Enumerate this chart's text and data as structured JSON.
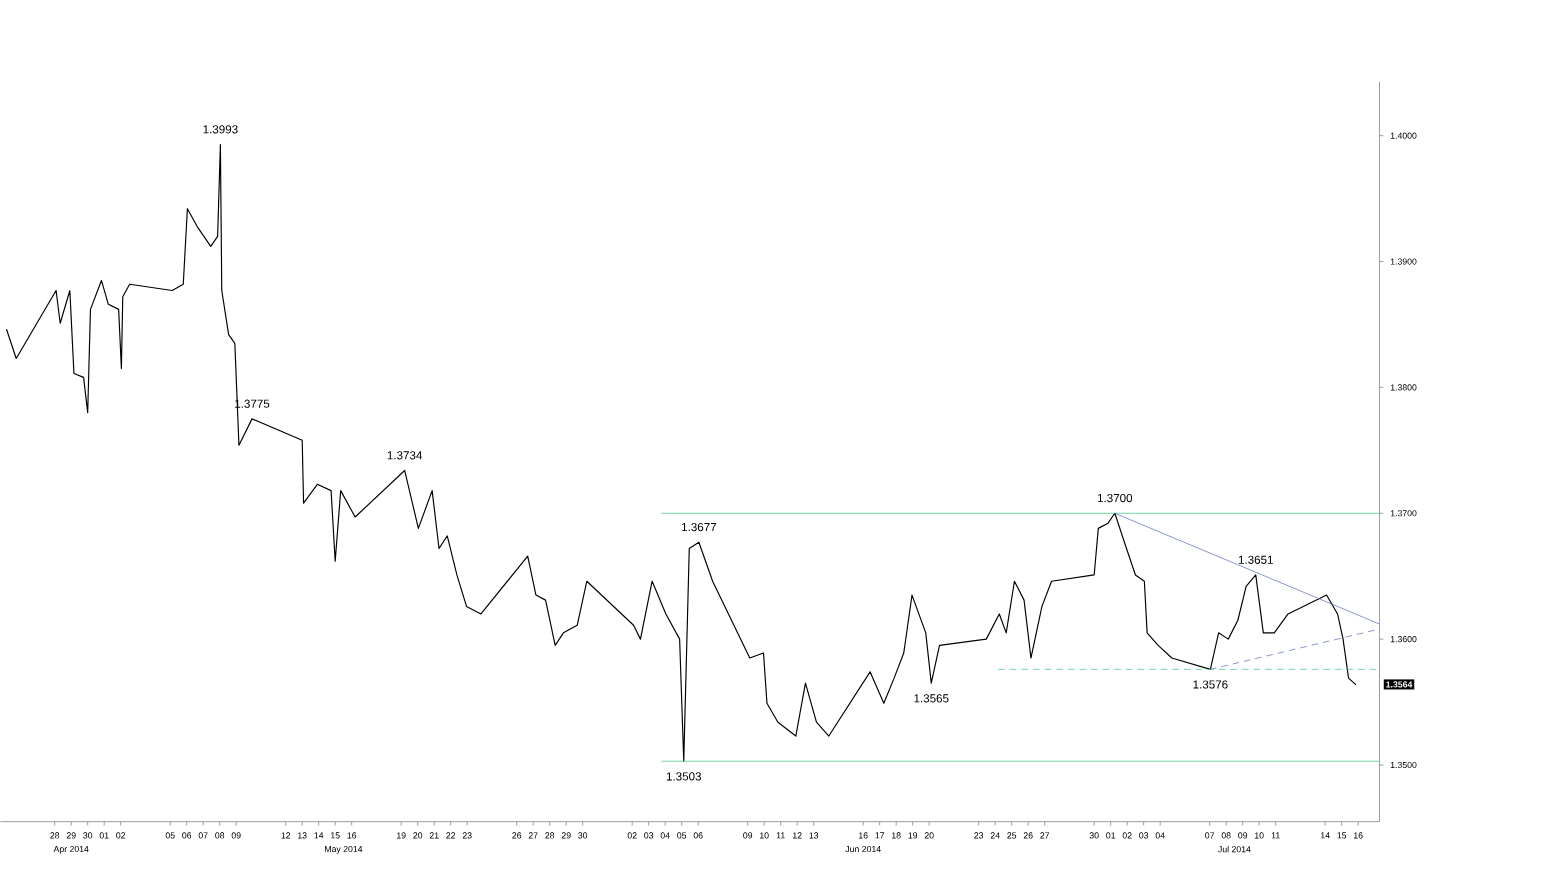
{
  "chart_data": {
    "type": "line",
    "xlim": [
      "2014-04-24T17:00",
      "2014-07-17T07:00"
    ],
    "ylim": [
      1.3455,
      1.4043
    ],
    "xticks": [
      {
        "value": "2014-04-28",
        "label": "28"
      },
      {
        "value": "2014-04-29",
        "label": "29"
      },
      {
        "value": "2014-04-30",
        "label": "30"
      },
      {
        "value": "2014-05-01",
        "label": "01"
      },
      {
        "value": "2014-05-02",
        "label": "02"
      },
      {
        "value": "2014-05-05",
        "label": "05"
      },
      {
        "value": "2014-05-06",
        "label": "06"
      },
      {
        "value": "2014-05-07",
        "label": "07"
      },
      {
        "value": "2014-05-08",
        "label": "08"
      },
      {
        "value": "2014-05-09",
        "label": "09"
      },
      {
        "value": "2014-05-12",
        "label": "12"
      },
      {
        "value": "2014-05-13",
        "label": "13"
      },
      {
        "value": "2014-05-14",
        "label": "14"
      },
      {
        "value": "2014-05-15",
        "label": "15"
      },
      {
        "value": "2014-05-16",
        "label": "16"
      },
      {
        "value": "2014-05-19",
        "label": "19"
      },
      {
        "value": "2014-05-20",
        "label": "20"
      },
      {
        "value": "2014-05-21",
        "label": "21"
      },
      {
        "value": "2014-05-22",
        "label": "22"
      },
      {
        "value": "2014-05-23",
        "label": "23"
      },
      {
        "value": "2014-05-26",
        "label": "26"
      },
      {
        "value": "2014-05-27",
        "label": "27"
      },
      {
        "value": "2014-05-28",
        "label": "28"
      },
      {
        "value": "2014-05-29",
        "label": "29"
      },
      {
        "value": "2014-05-30",
        "label": "30"
      },
      {
        "value": "2014-06-02",
        "label": "02"
      },
      {
        "value": "2014-06-03",
        "label": "03"
      },
      {
        "value": "2014-06-04",
        "label": "04"
      },
      {
        "value": "2014-06-05",
        "label": "05"
      },
      {
        "value": "2014-06-06",
        "label": "06"
      },
      {
        "value": "2014-06-09",
        "label": "09"
      },
      {
        "value": "2014-06-10",
        "label": "10"
      },
      {
        "value": "2014-06-11",
        "label": "11"
      },
      {
        "value": "2014-06-12",
        "label": "12"
      },
      {
        "value": "2014-06-13",
        "label": "13"
      },
      {
        "value": "2014-06-16",
        "label": "16"
      },
      {
        "value": "2014-06-17",
        "label": "17"
      },
      {
        "value": "2014-06-18",
        "label": "18"
      },
      {
        "value": "2014-06-19",
        "label": "19"
      },
      {
        "value": "2014-06-20",
        "label": "20"
      },
      {
        "value": "2014-06-23",
        "label": "23"
      },
      {
        "value": "2014-06-24",
        "label": "24"
      },
      {
        "value": "2014-06-25",
        "label": "25"
      },
      {
        "value": "2014-06-26",
        "label": "26"
      },
      {
        "value": "2014-06-27",
        "label": "27"
      },
      {
        "value": "2014-06-30",
        "label": "30"
      },
      {
        "value": "2014-07-01",
        "label": "01"
      },
      {
        "value": "2014-07-02",
        "label": "02"
      },
      {
        "value": "2014-07-03",
        "label": "03"
      },
      {
        "value": "2014-07-04",
        "label": "04"
      },
      {
        "value": "2014-07-07",
        "label": "07"
      },
      {
        "value": "2014-07-08",
        "label": "08"
      },
      {
        "value": "2014-07-09",
        "label": "09"
      },
      {
        "value": "2014-07-10",
        "label": "10"
      },
      {
        "value": "2014-07-11",
        "label": "11"
      },
      {
        "value": "2014-07-14",
        "label": "14"
      },
      {
        "value": "2014-07-15",
        "label": "15"
      },
      {
        "value": "2014-07-16",
        "label": "16"
      }
    ],
    "yticks": [
      {
        "value": 1.35,
        "label": "1.3500"
      },
      {
        "value": 1.36,
        "label": "1.3600"
      },
      {
        "value": 1.37,
        "label": "1.3700"
      },
      {
        "value": 1.38,
        "label": "1.3800"
      },
      {
        "value": 1.39,
        "label": "1.3900"
      },
      {
        "value": 1.4,
        "label": "1.4000"
      }
    ],
    "series": [
      {
        "color": "#000000",
        "line_style": "solid",
        "x": [
          "2014-04-25T02:00",
          "2014-04-25T16:00",
          "2014-04-28T02:00",
          "2014-04-28T08:00",
          "2014-04-28T22:00",
          "2014-04-29T04:00",
          "2014-04-29T18:00",
          "2014-04-30T00:00",
          "2014-04-30T04:00",
          "2014-04-30T20:00",
          "2014-05-01T06:00",
          "2014-05-01T21:00",
          "2014-05-02T01:00",
          "2014-05-02T03:00",
          "2014-05-02T13:00",
          "2014-05-05T03:00",
          "2014-05-05T19:00",
          "2014-05-06T01:00",
          "2014-05-06T15:00",
          "2014-05-07T11:00",
          "2014-05-07T21:00",
          "2014-05-08T01:00",
          "2014-05-08T03:00",
          "2014-05-08T13:00",
          "2014-05-08T22:00",
          "2014-05-09T04:00",
          "2014-05-09T23:00",
          "2014-05-13T00:00",
          "2014-05-13T02:00",
          "2014-05-13T22:00",
          "2014-05-14T18:00",
          "2014-05-15T00:00",
          "2014-05-15T08:00",
          "2014-05-16T05:00",
          "2014-05-19T05:00",
          "2014-05-20T01:00",
          "2014-05-20T21:00",
          "2014-05-21T07:00",
          "2014-05-21T19:00",
          "2014-05-22T09:00",
          "2014-05-22T23:00",
          "2014-05-23T20:00",
          "2014-05-26T16:00",
          "2014-05-27T04:00",
          "2014-05-27T18:00",
          "2014-05-28T08:00",
          "2014-05-28T20:00",
          "2014-05-29T16:00",
          "2014-05-30T06:00",
          "2014-06-02T02:00",
          "2014-06-02T12:00",
          "2014-06-03T05:00",
          "2014-06-04T01:00",
          "2014-06-04T21:00",
          "2014-06-05T03:00",
          "2014-06-05T11:00",
          "2014-06-06T01:00",
          "2014-06-06T21:00",
          "2014-06-09T03:00",
          "2014-06-09T23:00",
          "2014-06-10T04:00",
          "2014-06-10T20:00",
          "2014-06-11T22:00",
          "2014-06-12T12:00",
          "2014-06-13T04:00",
          "2014-06-13T22:00",
          "2014-06-16T10:00",
          "2014-06-17T06:00",
          "2014-06-17T21:00",
          "2014-06-18T11:00",
          "2014-06-18T23:00",
          "2014-06-19T19:00",
          "2014-06-20T03:00",
          "2014-06-20T15:00",
          "2014-06-23T11:00",
          "2014-06-24T06:00",
          "2014-06-24T16:00",
          "2014-06-25T04:00",
          "2014-06-25T18:00",
          "2014-06-26T04:00",
          "2014-06-26T20:00",
          "2014-06-27T10:00",
          "2014-06-30T00:00",
          "2014-06-30T06:00",
          "2014-06-30T20:00",
          "2014-07-01T06:00",
          "2014-07-01T23:00",
          "2014-07-02T12:00",
          "2014-07-03T01:00",
          "2014-07-03T05:00",
          "2014-07-03T21:00",
          "2014-07-04T17:00",
          "2014-07-07T01:00",
          "2014-07-07T13:00",
          "2014-07-08T03:00",
          "2014-07-08T17:00",
          "2014-07-09T05:00",
          "2014-07-09T19:00",
          "2014-07-10T06:00",
          "2014-07-10T22:00",
          "2014-07-11T18:00",
          "2014-07-14T02:00",
          "2014-07-14T18:00",
          "2014-07-15T02:00",
          "2014-07-15T10:00",
          "2014-07-15T20:00"
        ],
        "values": [
          1.3846,
          1.3823,
          1.3877,
          1.3851,
          1.3877,
          1.3811,
          1.3808,
          1.378,
          1.3862,
          1.3885,
          1.3866,
          1.3862,
          1.3815,
          1.3872,
          1.3882,
          1.3877,
          1.3882,
          1.3942,
          1.3928,
          1.3912,
          1.392,
          1.3993,
          1.3877,
          1.3842,
          1.3835,
          1.3754,
          1.3775,
          1.3758,
          1.3708,
          1.3723,
          1.3718,
          1.3662,
          1.3718,
          1.3697,
          1.3734,
          1.3688,
          1.3718,
          1.3672,
          1.3682,
          1.3651,
          1.3626,
          1.362,
          1.3666,
          1.3635,
          1.3631,
          1.3595,
          1.3605,
          1.3611,
          1.3646,
          1.3611,
          1.36,
          1.3646,
          1.362,
          1.36,
          1.3503,
          1.3672,
          1.3677,
          1.3646,
          1.3585,
          1.3589,
          1.3549,
          1.3534,
          1.3523,
          1.3565,
          1.3534,
          1.3523,
          1.3574,
          1.3549,
          1.3569,
          1.3589,
          1.3635,
          1.3605,
          1.3565,
          1.3595,
          1.36,
          1.362,
          1.3605,
          1.3646,
          1.3631,
          1.3585,
          1.3626,
          1.3646,
          1.3651,
          1.3688,
          1.3692,
          1.37,
          1.3672,
          1.3651,
          1.3646,
          1.3605,
          1.3595,
          1.3585,
          1.3576,
          1.3605,
          1.36,
          1.3615,
          1.3642,
          1.3651,
          1.3605,
          1.3605,
          1.362,
          1.3635,
          1.362,
          1.36,
          1.3569,
          1.3564
        ]
      },
      {
        "color": "#4cc98a",
        "line_style": "solid",
        "x": [
          "2014-06-03T19:00",
          "2014-07-17T07:00"
        ],
        "values": [
          1.37,
          1.37
        ]
      },
      {
        "color": "#4cc98a",
        "line_style": "solid",
        "x": [
          "2014-06-03T19:00",
          "2014-07-17T07:00"
        ],
        "values": [
          1.3503,
          1.3503
        ]
      },
      {
        "color": "#4cc98a",
        "line_style": "dashed",
        "x": [
          "2014-06-24T05:00",
          "2014-07-17T07:00"
        ],
        "values": [
          1.3576,
          1.3576
        ]
      },
      {
        "color": "#6677bb",
        "line_style": "solid",
        "x": [
          "2014-07-01T06:00",
          "2014-07-17T07:00"
        ],
        "values": [
          1.37,
          1.3612
        ]
      },
      {
        "color": "#6677bb",
        "line_style": "dashed",
        "x": [
          "2014-07-07T01:00",
          "2014-07-17T07:00"
        ],
        "values": [
          1.3576,
          1.3608
        ]
      }
    ],
    "annotations": [
      {
        "text": "1.3993",
        "x": "2014-05-08T01:00",
        "y": 1.3993
      },
      {
        "text": "1.3775",
        "x": "2014-05-09T23:00",
        "y": 1.3775
      },
      {
        "text": "1.3734",
        "x": "2014-05-19T05:00",
        "y": 1.3734
      },
      {
        "text": "1.3677",
        "x": "2014-06-06T01:00",
        "y": 1.3677
      },
      {
        "text": "1.3503",
        "x": "2014-06-05T03:00",
        "y": 1.3503
      },
      {
        "text": "1.3565",
        "x": "2014-06-20T03:00",
        "y": 1.3565
      },
      {
        "text": "1.3700",
        "x": "2014-07-01T06:00",
        "y": 1.37
      },
      {
        "text": "1.3651",
        "x": "2014-07-09T19:00",
        "y": 1.3651
      },
      {
        "text": "1.3576",
        "x": "2014-07-07T01:00",
        "y": 1.3576
      },
      "Apr 2014",
      "May 2014",
      "Jun 2014",
      "Jul 2014",
      "1.3564"
    ]
  }
}
